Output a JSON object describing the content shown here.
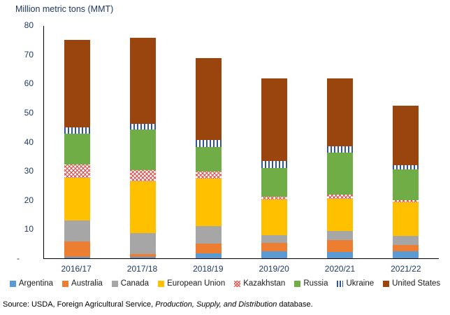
{
  "chart_data": {
    "type": "bar",
    "subtype": "stacked-column",
    "title": "Million metric tons (MMT)",
    "categories": [
      "2016/17",
      "2017/18",
      "2018/19",
      "2019/20",
      "2020/21",
      "2021/22"
    ],
    "series": [
      {
        "name": "Argentina",
        "color": "#5B9BD5",
        "pattern": "solid",
        "values": [
          0.4,
          0.5,
          1.7,
          2.3,
          2.2,
          2.3
        ]
      },
      {
        "name": "Australia",
        "color": "#ED7D31",
        "pattern": "solid",
        "values": [
          5.4,
          1.0,
          3.3,
          2.9,
          4.0,
          2.2
        ]
      },
      {
        "name": "Canada",
        "color": "#A6A6A6",
        "pattern": "solid",
        "values": [
          7.1,
          7.1,
          6.2,
          2.7,
          3.1,
          3.2
        ]
      },
      {
        "name": "European Union",
        "color": "#FFC000",
        "pattern": "solid",
        "values": [
          14.7,
          17.9,
          16.2,
          12.4,
          11.2,
          11.7
        ]
      },
      {
        "name": "Kazakhstan",
        "color": "#E8423F",
        "pattern": "crosshatch",
        "values": [
          4.8,
          3.8,
          2.4,
          1.0,
          1.4,
          0.7
        ]
      },
      {
        "name": "Russia",
        "color": "#70AD47",
        "pattern": "solid",
        "values": [
          10.5,
          14.0,
          8.6,
          9.8,
          14.5,
          10.5
        ]
      },
      {
        "name": "Ukraine",
        "color": "#2F5597",
        "pattern": "vstripe",
        "values": [
          2.1,
          2.1,
          2.4,
          2.4,
          2.1,
          1.4
        ]
      },
      {
        "name": "United States",
        "color": "#9A450E",
        "pattern": "solid",
        "values": [
          30.2,
          29.5,
          28.1,
          28.4,
          23.5,
          20.5
        ]
      }
    ],
    "ylim": [
      0,
      80
    ],
    "ytick_labels": [
      "80",
      "70",
      "60",
      "50",
      "40",
      "30",
      "20",
      "10",
      "-"
    ],
    "grid": false,
    "legend_position": "bottom"
  },
  "source": {
    "prefix": "Source: USDA, Foreign Agricultural Service, ",
    "italic": "Production, Supply, and Distribution",
    "suffix": " database."
  }
}
